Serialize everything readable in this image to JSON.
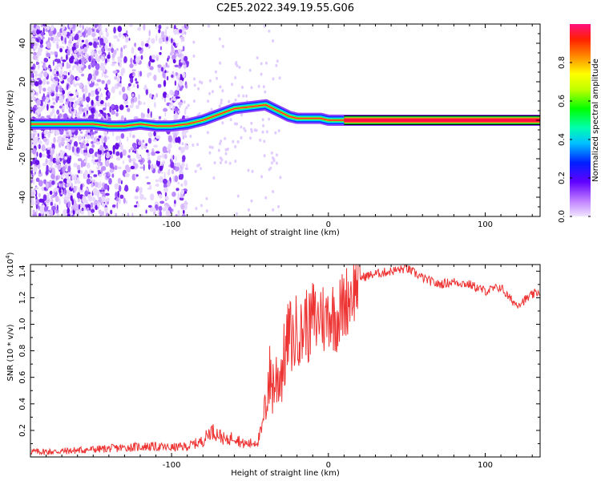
{
  "title": "C2E5.2022.349.19.55.G06",
  "chart_data": [
    {
      "type": "heatmap",
      "xlabel": "Height of straight line (km)",
      "ylabel": "Frequency (Hz)",
      "xlim": [
        -190,
        135
      ],
      "ylim": [
        -50,
        50
      ],
      "x_ticks": [
        -100,
        0,
        100
      ],
      "y_ticks": [
        -40,
        -20,
        0,
        20,
        40
      ],
      "colorbar": {
        "label": "Normalized spectral amplitude",
        "range": [
          0,
          1
        ],
        "ticks": [
          0.0,
          0.2,
          0.4,
          0.6,
          0.8
        ],
        "tick_labels": [
          "0.0",
          "0.2",
          "0.4",
          "0.6",
          "0.8"
        ]
      },
      "ridge": [
        {
          "x": -190,
          "y": -2
        },
        {
          "x": -175,
          "y": -2
        },
        {
          "x": -160,
          "y": -2
        },
        {
          "x": -150,
          "y": -2
        },
        {
          "x": -140,
          "y": -3
        },
        {
          "x": -130,
          "y": -3
        },
        {
          "x": -120,
          "y": -2
        },
        {
          "x": -110,
          "y": -3
        },
        {
          "x": -100,
          "y": -3
        },
        {
          "x": -90,
          "y": -2
        },
        {
          "x": -80,
          "y": 0
        },
        {
          "x": -70,
          "y": 3
        },
        {
          "x": -60,
          "y": 6
        },
        {
          "x": -50,
          "y": 7
        },
        {
          "x": -40,
          "y": 8
        },
        {
          "x": -35,
          "y": 6
        },
        {
          "x": -30,
          "y": 4
        },
        {
          "x": -25,
          "y": 2
        },
        {
          "x": -20,
          "y": 1
        },
        {
          "x": -15,
          "y": 1
        },
        {
          "x": -10,
          "y": 1
        },
        {
          "x": -5,
          "y": 1
        },
        {
          "x": 0,
          "y": 0
        },
        {
          "x": 5,
          "y": 0
        },
        {
          "x": 10,
          "y": 0
        },
        {
          "x": 135,
          "y": 0
        }
      ]
    },
    {
      "type": "line",
      "xlabel": "Height of straight line (km)",
      "ylabel": "SNR (10 * v/v)",
      "scale_label": "(x10",
      "scale_exp": "4",
      "scale_close": ")",
      "xlim": [
        -190,
        135
      ],
      "ylim": [
        0,
        1.45
      ],
      "x_ticks": [
        -100,
        0,
        100
      ],
      "y_ticks": [
        0.2,
        0.4,
        0.6,
        0.8,
        1.0,
        1.2,
        1.4
      ],
      "y_tick_labels": [
        "0.2",
        "0.4",
        "0.6",
        "0.8",
        "1.0",
        "1.2",
        "1.4"
      ],
      "color": "#ee3333",
      "series": [
        {
          "x": [
            -190,
            -175,
            -160,
            -145,
            -130,
            -115,
            -100,
            -90,
            -80,
            -75,
            -70,
            -65,
            -60,
            -55,
            -50,
            -45,
            -42,
            -40,
            -38,
            -35,
            -30,
            -27,
            -25,
            -22,
            -20,
            -17,
            -15,
            -12,
            -10,
            -7,
            -5,
            -2,
            0,
            5,
            10,
            15,
            20,
            30,
            40,
            50,
            60,
            70,
            80,
            90,
            100,
            110,
            115,
            120,
            125,
            130,
            135
          ],
          "y": [
            0.04,
            0.04,
            0.05,
            0.06,
            0.07,
            0.08,
            0.07,
            0.08,
            0.12,
            0.2,
            0.17,
            0.12,
            0.16,
            0.1,
            0.1,
            0.12,
            0.22,
            0.45,
            0.6,
            0.55,
            0.65,
            0.8,
            0.95,
            0.85,
            1.0,
            0.9,
            1.05,
            0.95,
            1.08,
            1.0,
            1.12,
            1.0,
            1.1,
            1.05,
            1.15,
            1.25,
            1.35,
            1.38,
            1.4,
            1.42,
            1.35,
            1.3,
            1.32,
            1.3,
            1.25,
            1.28,
            1.2,
            1.15,
            1.18,
            1.22,
            1.25
          ]
        }
      ]
    }
  ]
}
